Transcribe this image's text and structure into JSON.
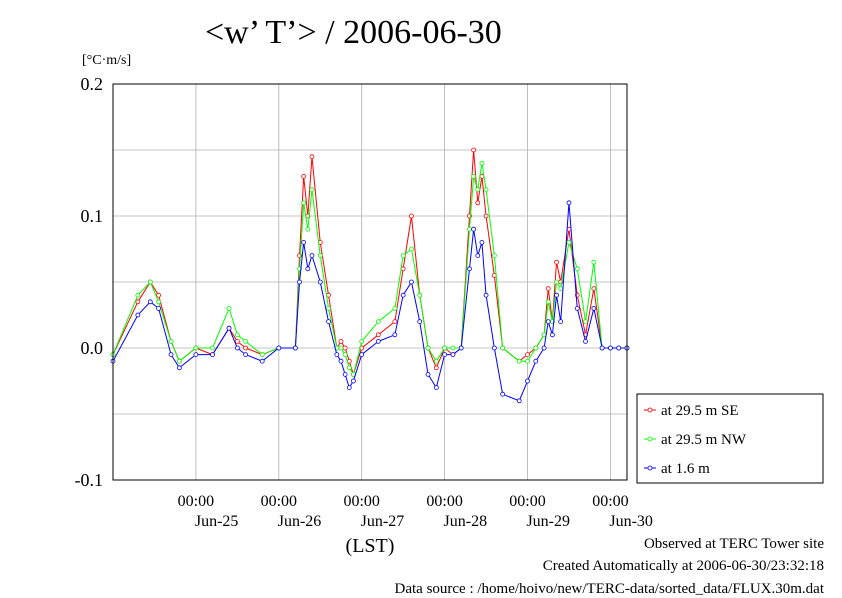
{
  "chart_data": {
    "type": "line",
    "title": "<w’ T’> / 2006-06-30",
    "ylabel_unit": "[°C·m/s]",
    "xlabel": "(LST)",
    "ylim": [
      -0.1,
      0.2
    ],
    "yticks": [
      "-0.1",
      "0.0",
      "0.1",
      "0.2"
    ],
    "yticks_values": [
      -0.1,
      0.0,
      0.1,
      0.2
    ],
    "xlim_days": [
      24.0,
      30.2
    ],
    "xticks": [
      {
        "time": "00:00",
        "date": "Jun-25",
        "day": 25
      },
      {
        "time": "00:00",
        "date": "Jun-26",
        "day": 26
      },
      {
        "time": "00:00",
        "date": "Jun-27",
        "day": 27
      },
      {
        "time": "00:00",
        "date": "Jun-28",
        "day": 28
      },
      {
        "time": "00:00",
        "date": "Jun-29",
        "day": 29
      },
      {
        "time": "00:00",
        "date": "Jun-30",
        "day": 30
      }
    ],
    "grid": true,
    "legend_position": "right",
    "series": [
      {
        "name": "at 29.5 m SE",
        "color": "#ff0000",
        "x": [
          24.0,
          24.3,
          24.45,
          24.55,
          24.7,
          24.8,
          25.0,
          25.2,
          25.4,
          25.5,
          25.6,
          25.8,
          26.0,
          26.2,
          26.25,
          26.3,
          26.35,
          26.4,
          26.5,
          26.6,
          26.7,
          26.75,
          26.8,
          26.85,
          26.9,
          27.0,
          27.2,
          27.4,
          27.5,
          27.6,
          27.7,
          27.8,
          27.9,
          28.0,
          28.1,
          28.2,
          28.3,
          28.35,
          28.4,
          28.45,
          28.5,
          28.6,
          28.7,
          28.9,
          29.0,
          29.1,
          29.2,
          29.25,
          29.3,
          29.35,
          29.4,
          29.5,
          29.6,
          29.7,
          29.8,
          29.9,
          30.0,
          30.1,
          30.2
        ],
        "y": [
          -0.005,
          0.035,
          0.05,
          0.04,
          0.005,
          -0.01,
          0.0,
          -0.005,
          0.015,
          0.005,
          0.0,
          -0.005,
          0.0,
          0.0,
          0.07,
          0.13,
          0.1,
          0.145,
          0.08,
          0.04,
          0.0,
          0.005,
          0.0,
          -0.01,
          -0.02,
          0.0,
          0.01,
          0.02,
          0.06,
          0.1,
          0.04,
          0.0,
          -0.015,
          0.0,
          -0.005,
          0.0,
          0.1,
          0.15,
          0.11,
          0.13,
          0.1,
          0.055,
          0.0,
          -0.01,
          -0.005,
          0.0,
          0.01,
          0.045,
          0.02,
          0.065,
          0.05,
          0.09,
          0.04,
          0.01,
          0.045,
          0.0,
          0.0,
          0.0,
          0.0
        ]
      },
      {
        "name": "at 29.5 m NW",
        "color": "#00ff00",
        "x": [
          24.0,
          24.3,
          24.45,
          24.55,
          24.7,
          24.8,
          25.0,
          25.2,
          25.4,
          25.5,
          25.6,
          25.8,
          26.0,
          26.2,
          26.25,
          26.3,
          26.35,
          26.4,
          26.5,
          26.6,
          26.7,
          26.75,
          26.8,
          26.85,
          26.9,
          27.0,
          27.2,
          27.4,
          27.5,
          27.6,
          27.7,
          27.8,
          27.9,
          28.0,
          28.1,
          28.2,
          28.3,
          28.35,
          28.4,
          28.45,
          28.5,
          28.6,
          28.7,
          28.9,
          29.0,
          29.1,
          29.2,
          29.25,
          29.3,
          29.35,
          29.4,
          29.5,
          29.6,
          29.7,
          29.8,
          29.9,
          30.0,
          30.1,
          30.2
        ],
        "y": [
          -0.005,
          0.04,
          0.05,
          0.035,
          0.005,
          -0.01,
          0.0,
          0.0,
          0.03,
          0.01,
          0.005,
          -0.005,
          0.0,
          0.0,
          0.06,
          0.11,
          0.09,
          0.12,
          0.07,
          0.03,
          0.0,
          0.0,
          -0.005,
          -0.015,
          -0.02,
          0.005,
          0.02,
          0.03,
          0.07,
          0.075,
          0.04,
          0.0,
          -0.01,
          0.0,
          0.0,
          0.0,
          0.09,
          0.13,
          0.12,
          0.14,
          0.12,
          0.07,
          0.0,
          -0.01,
          -0.01,
          0.0,
          0.01,
          0.035,
          0.02,
          0.05,
          0.045,
          0.08,
          0.06,
          0.02,
          0.065,
          0.0,
          0.0,
          0.0,
          0.0
        ]
      },
      {
        "name": "at 1.6 m",
        "color": "#0000ff",
        "x": [
          24.0,
          24.3,
          24.45,
          24.55,
          24.7,
          24.8,
          25.0,
          25.2,
          25.4,
          25.5,
          25.6,
          25.8,
          26.0,
          26.2,
          26.25,
          26.3,
          26.35,
          26.4,
          26.5,
          26.6,
          26.7,
          26.75,
          26.8,
          26.85,
          26.9,
          27.0,
          27.2,
          27.4,
          27.5,
          27.6,
          27.7,
          27.8,
          27.9,
          28.0,
          28.1,
          28.2,
          28.3,
          28.35,
          28.4,
          28.45,
          28.5,
          28.6,
          28.7,
          28.9,
          29.0,
          29.1,
          29.2,
          29.25,
          29.3,
          29.35,
          29.4,
          29.5,
          29.6,
          29.7,
          29.8,
          29.9,
          30.0,
          30.1,
          30.2
        ],
        "y": [
          -0.01,
          0.025,
          0.035,
          0.03,
          -0.005,
          -0.015,
          -0.005,
          -0.005,
          0.015,
          0.0,
          -0.005,
          -0.01,
          0.0,
          0.0,
          0.05,
          0.08,
          0.06,
          0.07,
          0.05,
          0.02,
          -0.005,
          -0.01,
          -0.02,
          -0.03,
          -0.025,
          -0.005,
          0.005,
          0.01,
          0.04,
          0.05,
          0.02,
          -0.02,
          -0.03,
          -0.005,
          -0.005,
          0.0,
          0.06,
          0.09,
          0.07,
          0.08,
          0.04,
          0.0,
          -0.035,
          -0.04,
          -0.025,
          -0.01,
          0.0,
          0.02,
          0.01,
          0.04,
          0.02,
          0.11,
          0.03,
          0.005,
          0.03,
          0.0,
          0.0,
          0.0,
          0.0
        ]
      }
    ]
  },
  "footer": {
    "line1": "Observed at TERC Tower site",
    "line2": "Created Automatically at 2006-06-30/23:32:18",
    "line3": "Data source : /home/hoivo/new/TERC-data/sorted_data/FLUX.30m.dat"
  }
}
